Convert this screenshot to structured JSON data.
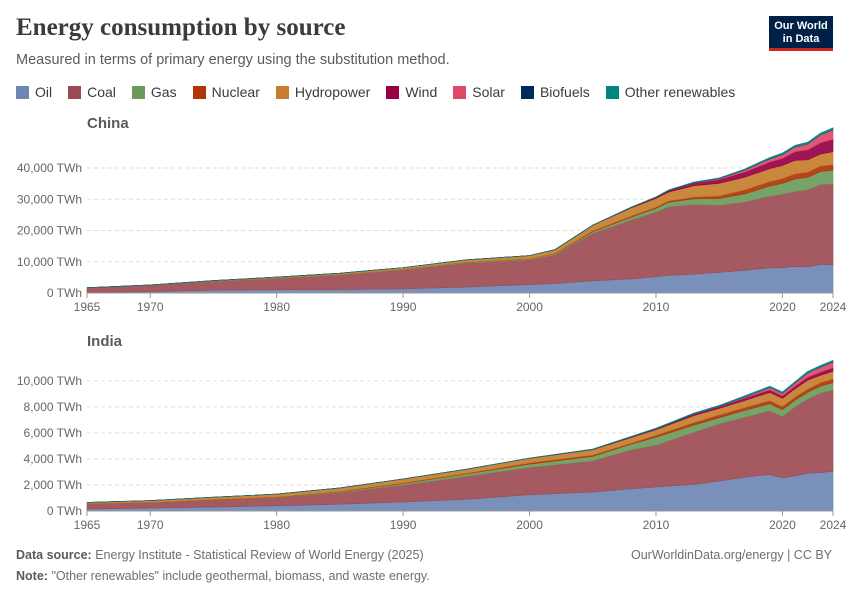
{
  "header": {
    "title": "Energy consumption by source",
    "subtitle": "Measured in terms of primary energy using the substitution method.",
    "logo_line1": "Our World",
    "logo_line2": "in Data"
  },
  "footer": {
    "source_label": "Data source:",
    "source_text": "Energy Institute - Statistical Review of World Energy (2025)",
    "note_label": "Note:",
    "note_text": "\"Other renewables\" include geothermal, biomass, and waste energy.",
    "url": "OurWorldinData.org/energy | CC BY"
  },
  "legend": [
    {
      "name": "Oil",
      "color": "#6d87b4"
    },
    {
      "name": "Coal",
      "color": "#9d4b53"
    },
    {
      "name": "Gas",
      "color": "#6b9a5b"
    },
    {
      "name": "Nuclear",
      "color": "#b13507"
    },
    {
      "name": "Hydropower",
      "color": "#c57e2f"
    },
    {
      "name": "Wind",
      "color": "#970046"
    },
    {
      "name": "Solar",
      "color": "#dc4a68"
    },
    {
      "name": "Biofuels",
      "color": "#00295b"
    },
    {
      "name": "Other renewables",
      "color": "#00847e"
    }
  ],
  "chart_data": [
    {
      "type": "area",
      "title": "China",
      "stacked": true,
      "xlim": [
        1965,
        2024
      ],
      "ylim": [
        0,
        48000
      ],
      "yticks": [
        0,
        10000,
        20000,
        30000,
        40000
      ],
      "ytick_labels": [
        "0 TWh",
        "10,000 TWh",
        "20,000 TWh",
        "30,000 TWh",
        "40,000 TWh"
      ],
      "xticks": [
        1965,
        1970,
        1980,
        1990,
        2000,
        2010,
        2020,
        2024
      ],
      "grid": true,
      "x": [
        1965,
        1970,
        1975,
        1980,
        1985,
        1990,
        1995,
        2000,
        2002,
        2005,
        2008,
        2010,
        2011,
        2013,
        2015,
        2017,
        2019,
        2020,
        2021,
        2022,
        2023,
        2024
      ],
      "series": [
        {
          "name": "Oil",
          "values": [
            150,
            450,
            900,
            1050,
            1100,
            1350,
            1900,
            2700,
            3000,
            3900,
            4500,
            5200,
            5600,
            6000,
            6600,
            7300,
            8000,
            8100,
            8500,
            8400,
            9100,
            9100
          ]
        },
        {
          "name": "Coal",
          "values": [
            1500,
            2000,
            2800,
            3600,
            4700,
            6100,
            7700,
            7900,
            9200,
            15200,
            18800,
            20700,
            22000,
            22300,
            21500,
            21800,
            23000,
            23500,
            24000,
            24700,
            25600,
            25800
          ]
        },
        {
          "name": "Gas",
          "values": [
            10,
            50,
            120,
            150,
            140,
            170,
            200,
            280,
            330,
            500,
            900,
            1200,
            1450,
            1850,
            2100,
            2600,
            3200,
            3500,
            4000,
            3900,
            4200,
            4400
          ]
        },
        {
          "name": "Nuclear",
          "values": [
            0,
            0,
            0,
            0,
            0,
            0,
            70,
            90,
            130,
            280,
            360,
            390,
            450,
            580,
            900,
            1300,
            1500,
            1500,
            1650,
            1700,
            1750,
            1800
          ]
        },
        {
          "name": "Hydropower",
          "values": [
            40,
            80,
            150,
            300,
            400,
            500,
            750,
            1000,
            1200,
            1800,
            2600,
            2800,
            2800,
            3600,
            4000,
            4000,
            4100,
            4200,
            4300,
            3900,
            3800,
            4100
          ]
        },
        {
          "name": "Wind",
          "values": [
            0,
            0,
            0,
            0,
            0,
            0,
            0,
            5,
            10,
            20,
            180,
            350,
            550,
            900,
            1200,
            1700,
            2100,
            2300,
            2800,
            3200,
            3600,
            4000
          ]
        },
        {
          "name": "Solar",
          "values": [
            0,
            0,
            0,
            0,
            0,
            0,
            0,
            0,
            0,
            0,
            0,
            5,
            20,
            80,
            300,
            600,
            1000,
            1200,
            1500,
            1900,
            2500,
            3000
          ]
        },
        {
          "name": "Biofuels",
          "values": [
            0,
            0,
            0,
            0,
            0,
            0,
            0,
            0,
            5,
            10,
            20,
            25,
            25,
            30,
            40,
            45,
            50,
            50,
            50,
            50,
            55,
            60
          ]
        },
        {
          "name": "Other renewables",
          "values": [
            0,
            0,
            0,
            0,
            0,
            0,
            0,
            10,
            15,
            30,
            60,
            90,
            110,
            160,
            200,
            300,
            400,
            430,
            480,
            510,
            560,
            600
          ]
        }
      ]
    },
    {
      "type": "area",
      "title": "India",
      "stacked": true,
      "xlim": [
        1965,
        2024
      ],
      "ylim": [
        0,
        11600
      ],
      "yticks": [
        0,
        2000,
        4000,
        6000,
        8000,
        10000
      ],
      "ytick_labels": [
        "0 TWh",
        "2,000 TWh",
        "4,000 TWh",
        "6,000 TWh",
        "8,000 TWh",
        "10,000 TWh"
      ],
      "xticks": [
        1965,
        1970,
        1980,
        1990,
        2000,
        2010,
        2020,
        2024
      ],
      "grid": true,
      "x": [
        1965,
        1970,
        1975,
        1980,
        1985,
        1990,
        1995,
        2000,
        2005,
        2008,
        2010,
        2013,
        2015,
        2017,
        2019,
        2020,
        2021,
        2022,
        2023,
        2024
      ],
      "series": [
        {
          "name": "Oil",
          "values": [
            150,
            230,
            300,
            400,
            520,
            700,
            900,
            1250,
            1450,
            1700,
            1850,
            2050,
            2300,
            2600,
            2800,
            2550,
            2700,
            2900,
            2950,
            3050
          ]
        },
        {
          "name": "Coal",
          "values": [
            420,
            430,
            560,
            640,
            900,
            1300,
            1750,
            2100,
            2400,
            3000,
            3200,
            4000,
            4400,
            4600,
            4900,
            4700,
            5300,
            5700,
            6100,
            6250
          ]
        },
        {
          "name": "Gas",
          "values": [
            0,
            5,
            10,
            20,
            60,
            120,
            200,
            250,
            350,
            420,
            620,
            550,
            470,
            520,
            540,
            540,
            520,
            510,
            540,
            560
          ]
        },
        {
          "name": "Nuclear",
          "values": [
            0,
            5,
            15,
            20,
            30,
            40,
            40,
            100,
            110,
            90,
            150,
            200,
            220,
            220,
            250,
            240,
            250,
            260,
            270,
            290
          ]
        },
        {
          "name": "Hydropower",
          "values": [
            90,
            130,
            180,
            220,
            260,
            300,
            320,
            350,
            400,
            420,
            420,
            530,
            500,
            540,
            620,
            630,
            620,
            680,
            560,
            580
          ]
        },
        {
          "name": "Wind",
          "values": [
            0,
            0,
            0,
            0,
            0,
            0,
            2,
            5,
            30,
            60,
            80,
            120,
            130,
            190,
            200,
            180,
            200,
            230,
            250,
            270
          ]
        },
        {
          "name": "Solar",
          "values": [
            0,
            0,
            0,
            0,
            0,
            0,
            0,
            0,
            0,
            0,
            0,
            10,
            20,
            80,
            180,
            200,
            240,
            320,
            380,
            440
          ]
        },
        {
          "name": "Biofuels",
          "values": [
            0,
            0,
            0,
            0,
            0,
            0,
            0,
            0,
            0,
            2,
            3,
            5,
            5,
            8,
            10,
            10,
            12,
            14,
            16,
            18
          ]
        },
        {
          "name": "Other renewables",
          "values": [
            0,
            0,
            0,
            0,
            0,
            0,
            0,
            10,
            20,
            30,
            40,
            60,
            70,
            80,
            90,
            90,
            100,
            110,
            110,
            120
          ]
        }
      ]
    }
  ]
}
